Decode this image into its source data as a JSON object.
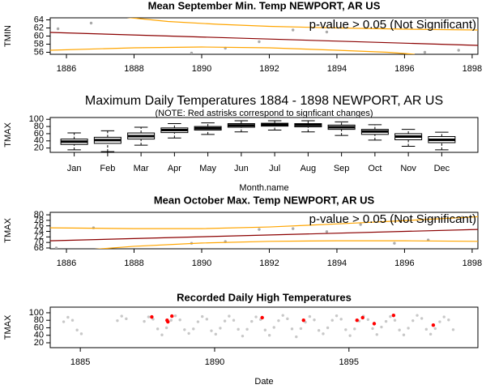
{
  "chart_data": [
    {
      "type": "scatter",
      "title": "Mean September Min. Temp NEWPORT, AR US",
      "ylabel": "TMIN",
      "annotation": "p-value > 0.05 (Not Significant)",
      "xlim": [
        1885.52,
        1898.17
      ],
      "xticks": [
        1886,
        1888,
        1890,
        1892,
        1894,
        1896,
        1898
      ],
      "ylim": [
        55.5,
        64.5
      ],
      "yticks": [
        56,
        58,
        60,
        62,
        64
      ],
      "series": [
        {
          "color": "#aaaaaa",
          "x": [
            1885.75,
            1886.73,
            1889.7,
            1890.7,
            1891.7,
            1892.7,
            1893.7,
            1896.6,
            1897.6
          ],
          "values": [
            61.8,
            63.2,
            55.8,
            57,
            58.6,
            61.5,
            61,
            56,
            56.5
          ]
        }
      ],
      "lines": [
        {
          "color": "#8b0000",
          "x": [
            1885.52,
            1898.17
          ],
          "values": [
            60.9,
            57.7
          ]
        },
        {
          "color": "#ffa500",
          "x": [
            1887.8,
            1889,
            1890.5,
            1892,
            1894,
            1896,
            1898.17
          ],
          "values": [
            64.6,
            63.6,
            62.9,
            62.4,
            62.0,
            61.7,
            61.5
          ]
        },
        {
          "color": "#ffa500",
          "x": [
            1885.52,
            1888,
            1890,
            1892,
            1894,
            1895.5,
            1896.3
          ],
          "values": [
            56.5,
            57.1,
            57.3,
            57.1,
            56.5,
            56.0,
            55.5
          ]
        }
      ]
    },
    {
      "type": "box",
      "title": "Maximum Daily Temperatures 1884 - 1898 NEWPORT, AR US",
      "subtitle": "(NOTE: Red astrisks correspond to signficant changes)",
      "xlabel": "Month.name",
      "ylabel": "TMAX",
      "categories": [
        "Jan",
        "Feb",
        "Mar",
        "Apr",
        "May",
        "Jun",
        "Jul",
        "Aug",
        "Sep",
        "Oct",
        "Nov",
        "Dec"
      ],
      "ylim": [
        8,
        105
      ],
      "yticks": [
        20,
        40,
        60,
        80,
        100
      ],
      "whisker_low": [
        15,
        10,
        28,
        48,
        58,
        65,
        70,
        65,
        55,
        42,
        25,
        15
      ],
      "q1": [
        30,
        33,
        45,
        63,
        70,
        78,
        81,
        79,
        72,
        58,
        43,
        35
      ],
      "median": [
        38,
        42,
        53,
        70,
        75,
        83,
        85,
        84,
        78,
        66,
        52,
        43
      ],
      "q3": [
        45,
        50,
        62,
        76,
        80,
        88,
        89,
        88,
        84,
        72,
        60,
        52
      ],
      "whisker_high": [
        62,
        68,
        78,
        88,
        90,
        96,
        96,
        96,
        93,
        85,
        72,
        64
      ]
    },
    {
      "type": "scatter",
      "title": "Mean October Max. Temp NEWPORT, AR US",
      "ylabel": "TMAX",
      "annotation": "p-value > 0.05 (Not Significant)",
      "xlim": [
        1885.52,
        1898.17
      ],
      "xticks": [
        1886,
        1888,
        1890,
        1892,
        1894,
        1896,
        1898
      ],
      "ylim": [
        67.7,
        80.9
      ],
      "yticks": [
        68,
        70,
        72,
        74,
        76,
        78,
        80
      ],
      "series": [
        {
          "color": "#aaaaaa",
          "x": [
            1885.7,
            1886.8,
            1889.7,
            1890.7,
            1891.7,
            1892.7,
            1893.7,
            1894.7,
            1895.7,
            1896.7,
            1897.7
          ],
          "values": [
            68.0,
            75.3,
            69.7,
            70.3,
            74.7,
            75,
            73.9,
            76.5,
            69.7,
            70.9,
            79.1
          ]
        }
      ],
      "lines": [
        {
          "color": "#8b0000",
          "x": [
            1885.52,
            1898.17
          ],
          "values": [
            70.6,
            74.7
          ]
        },
        {
          "color": "#ffa500",
          "x": [
            1885.52,
            1888,
            1890,
            1892,
            1894,
            1896,
            1898.17
          ],
          "values": [
            75.3,
            75.0,
            75.0,
            75.6,
            76.7,
            77.9,
            79.3
          ]
        },
        {
          "color": "#ffa500",
          "x": [
            1886.8,
            1888,
            1890,
            1892,
            1894,
            1896,
            1898.17
          ],
          "values": [
            67.5,
            68.6,
            69.8,
            70.4,
            70.6,
            70.6,
            70.4
          ]
        }
      ]
    },
    {
      "type": "scatter",
      "title": "Recorded Daily High Temperatures",
      "xlabel": "Date",
      "ylabel": "TMAX",
      "xlim": [
        1883.88,
        1899.8
      ],
      "xticks": [
        1885,
        1890,
        1895
      ],
      "ylim": [
        7,
        115
      ],
      "yticks": [
        20,
        40,
        60,
        80,
        100
      ],
      "series": [
        {
          "color": "#c8c8c8",
          "x": [
            1884.38,
            1884.54,
            1884.71,
            1884.88,
            1885.04,
            1886.38,
            1886.54,
            1886.71,
            1887.38,
            1887.54,
            1887.71,
            1887.88,
            1888.04,
            1888.21,
            1888.38,
            1888.54,
            1888.71,
            1888.88,
            1889.04,
            1889.21,
            1889.38,
            1889.54,
            1889.71,
            1889.88,
            1890.04,
            1890.21,
            1890.38,
            1890.54,
            1890.71,
            1890.88,
            1891.04,
            1891.21,
            1891.38,
            1891.54,
            1891.71,
            1891.88,
            1892.04,
            1892.21,
            1892.38,
            1892.54,
            1892.71,
            1892.88,
            1893.04,
            1893.21,
            1893.38,
            1893.54,
            1893.71,
            1893.88,
            1894.04,
            1894.21,
            1894.38,
            1894.54,
            1894.71,
            1894.88,
            1895.04,
            1895.21,
            1895.38,
            1895.54,
            1895.71,
            1895.88,
            1896.04,
            1896.21,
            1896.38,
            1896.54,
            1896.71,
            1896.88,
            1897.04,
            1897.21,
            1897.38,
            1897.54,
            1897.71,
            1897.88,
            1898.04,
            1898.21,
            1898.38,
            1898.54,
            1898.71,
            1898.88
          ],
          "values": [
            76,
            88,
            80,
            54,
            44,
            79,
            91,
            84,
            77,
            89,
            83,
            57,
            41,
            60,
            80,
            92,
            81,
            55,
            45,
            57,
            76,
            90,
            83,
            52,
            43,
            59,
            78,
            91,
            80,
            56,
            38,
            56,
            77,
            89,
            82,
            54,
            40,
            61,
            79,
            93,
            84,
            57,
            36,
            58,
            75,
            90,
            81,
            53,
            44,
            60,
            80,
            92,
            83,
            55,
            39,
            57,
            78,
            91,
            82,
            58,
            42,
            62,
            77,
            90,
            80,
            54,
            41,
            59,
            79,
            93,
            85,
            56,
            43,
            58,
            76,
            89,
            81,
            55
          ]
        },
        {
          "color": "#ff0000",
          "x": [
            1887.66,
            1888.23,
            1888.26,
            1888.41,
            1891.77,
            1893.31,
            1895.3,
            1895.51,
            1895.94,
            1896.66,
            1898.14
          ],
          "values": [
            89,
            80,
            76,
            91,
            87,
            80,
            80,
            87,
            71,
            93,
            67
          ]
        }
      ]
    }
  ]
}
